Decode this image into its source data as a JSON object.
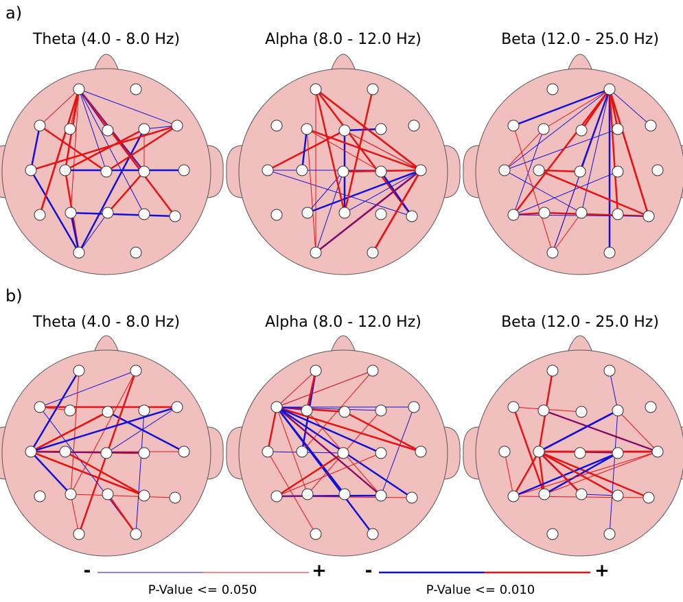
{
  "rows": [
    {
      "label": "a)",
      "panels": [
        "Theta (4.0 - 8.0 Hz)",
        "Alpha (8.0 - 12.0 Hz)",
        "Beta (12.0 - 25.0 Hz)"
      ]
    },
    {
      "label": "b)",
      "panels": [
        "Theta (4.0 - 8.0 Hz)",
        "Alpha (8.0 - 12.0 Hz)",
        "Beta (12.0 - 25.0 Hz)"
      ]
    }
  ],
  "legend": [
    {
      "minus": "-",
      "plus": "+",
      "caption": "P-Value <= 0.050"
    },
    {
      "minus": "-",
      "plus": "+",
      "caption": "P-Value <= 0.010"
    }
  ]
}
